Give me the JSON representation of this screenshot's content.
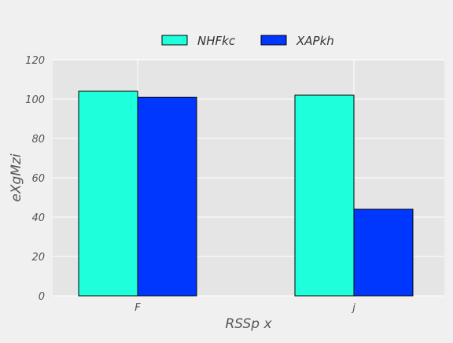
{
  "colors": {
    "figure_background": "#f0f0f0",
    "plot_background": "#e5e5e5",
    "grid": "#ffffff",
    "bar_edge": "#000000"
  },
  "chart_data": {
    "type": "bar",
    "title": "",
    "xlabel": "RSSp  x",
    "ylabel": "eXgMzi",
    "categories": [
      "F",
      "j"
    ],
    "series": [
      {
        "name": "NHFkc",
        "color": "#1effdb",
        "values": [
          104,
          102
        ]
      },
      {
        "name": "XAPkh",
        "color": "#0037ff",
        "values": [
          101,
          44
        ]
      }
    ],
    "ylim": [
      0,
      120
    ],
    "yticks": [
      0,
      20,
      40,
      60,
      80,
      100,
      120
    ],
    "grid": true,
    "legend_position": "top-center"
  }
}
